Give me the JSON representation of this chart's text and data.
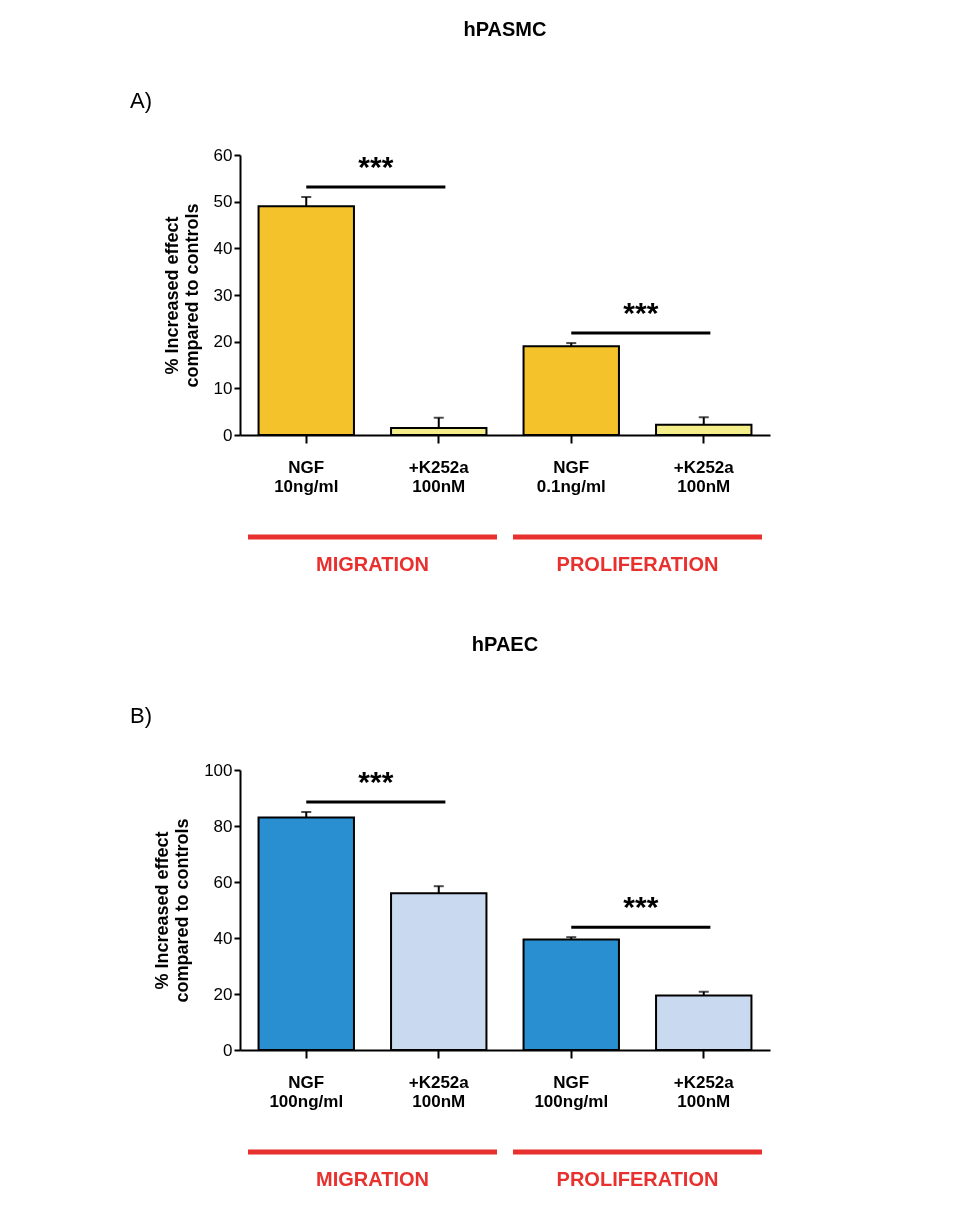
{
  "chart_data": [
    {
      "type": "bar",
      "title": "hPASMC",
      "ylabel": "% Increased effect\ncompared to controls",
      "categories": [
        "NGF\n10ng/ml",
        "+K252a\n100nM",
        "NGF\n0.1ng/ml",
        "+K252a\n100nM"
      ],
      "values": [
        49,
        1.5,
        19,
        2.2
      ],
      "colors": [
        "#f4c22a",
        "#f3ee8a",
        "#f4c22a",
        "#f3ee8a"
      ],
      "errors": [
        [
          49,
          51
        ],
        [
          1.5,
          3.7
        ],
        [
          19,
          19.7
        ],
        [
          2.2,
          3.8
        ]
      ],
      "ylim": [
        0,
        60
      ],
      "yticks": [
        0,
        10,
        20,
        30,
        40,
        50,
        60
      ],
      "grid": false,
      "legend": false,
      "annotations": [
        "A)",
        "***",
        "***",
        "MIGRATION",
        "PROLIFERATION"
      ]
    },
    {
      "type": "bar",
      "title": "hPAEC",
      "ylabel": "% Increased effect\ncompared to controls",
      "categories": [
        "NGF\n100ng/ml",
        "+K252a\n100nM",
        "NGF\n100ng/ml",
        "+K252a\n100nM"
      ],
      "values": [
        83,
        56,
        39.5,
        19.5
      ],
      "colors": [
        "#2a8fd0",
        "#c9d9ef",
        "#2a8fd0",
        "#c9d9ef"
      ],
      "errors": [
        [
          83,
          85
        ],
        [
          56,
          58.5
        ],
        [
          39.5,
          40.3
        ],
        [
          19.5,
          20.8
        ]
      ],
      "ylim": [
        0,
        100
      ],
      "yticks": [
        0,
        20,
        40,
        60,
        80,
        100
      ],
      "grid": false,
      "legend": false,
      "annotations": [
        "B)",
        "***",
        "***",
        "MIGRATION",
        "PROLIFERATION"
      ]
    }
  ]
}
